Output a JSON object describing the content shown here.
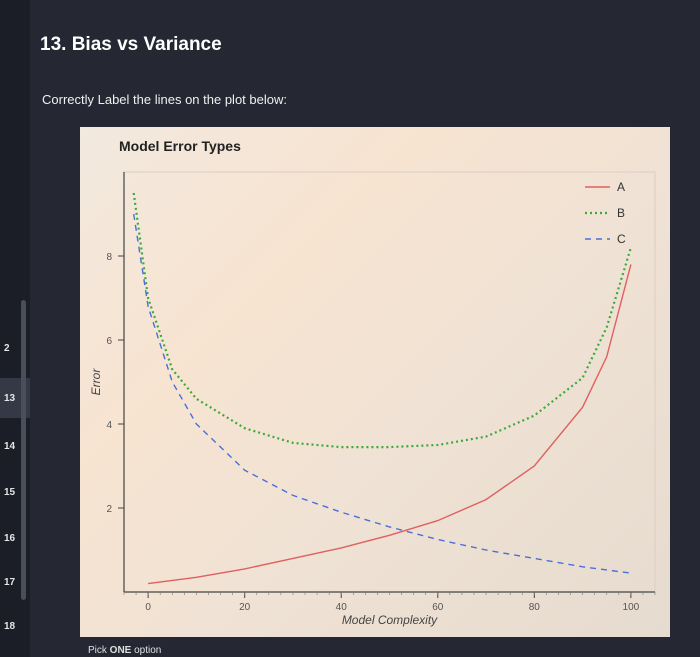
{
  "sidebar": {
    "items": [
      {
        "label": "2"
      },
      {
        "label": "13"
      },
      {
        "label": "14"
      },
      {
        "label": "15"
      },
      {
        "label": "16"
      },
      {
        "label": "17"
      },
      {
        "label": "18"
      }
    ]
  },
  "question": {
    "title": "13. Bias vs Variance",
    "prompt": "Correctly Label the lines on the plot below:"
  },
  "footer": {
    "prefix": "Pick ",
    "emphasis": "ONE",
    "suffix": " option"
  },
  "chart_data": {
    "type": "line",
    "title": "Model Error Types",
    "xlabel": "Model Complexity",
    "ylabel": "Error",
    "xlim": [
      -5,
      105
    ],
    "ylim": [
      0,
      10
    ],
    "xticks": [
      0,
      20,
      40,
      60,
      80,
      100
    ],
    "yticks": [
      2,
      4,
      6,
      8
    ],
    "grid": false,
    "legend": "top-right",
    "series": [
      {
        "name": "A",
        "style": "solid",
        "color": "#e06060",
        "x": [
          0,
          10,
          20,
          30,
          40,
          50,
          60,
          70,
          80,
          90,
          95,
          100
        ],
        "y": [
          0.2,
          0.35,
          0.55,
          0.8,
          1.05,
          1.35,
          1.7,
          2.2,
          3.0,
          4.4,
          5.6,
          7.8
        ]
      },
      {
        "name": "B",
        "style": "dotted",
        "color": "#3aaa3a",
        "x": [
          -3,
          0,
          5,
          10,
          20,
          30,
          40,
          50,
          60,
          70,
          80,
          90,
          95,
          100
        ],
        "y": [
          9.5,
          7.0,
          5.3,
          4.6,
          3.9,
          3.55,
          3.45,
          3.45,
          3.5,
          3.7,
          4.2,
          5.1,
          6.3,
          8.2
        ]
      },
      {
        "name": "C",
        "style": "dashed",
        "color": "#4a6fd8",
        "x": [
          -3,
          0,
          5,
          10,
          20,
          30,
          40,
          50,
          60,
          70,
          80,
          90,
          100
        ],
        "y": [
          9.0,
          6.8,
          5.0,
          4.0,
          2.9,
          2.3,
          1.9,
          1.55,
          1.25,
          1.0,
          0.8,
          0.6,
          0.45
        ]
      }
    ]
  }
}
